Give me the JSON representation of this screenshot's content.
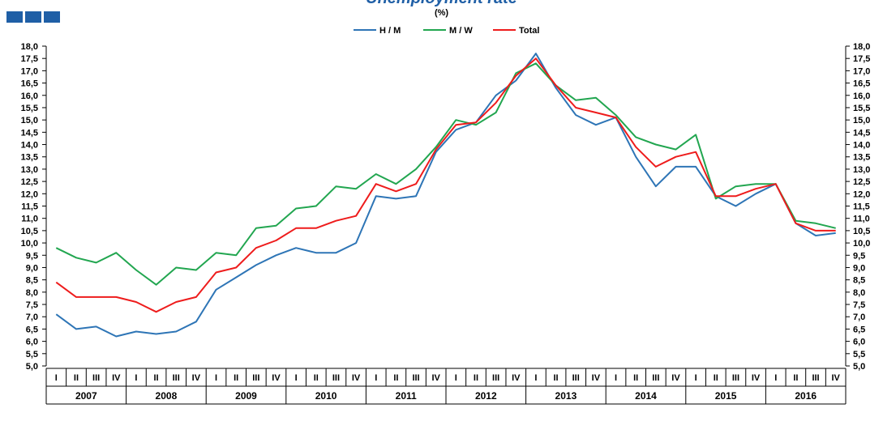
{
  "title": "Unemployment rate",
  "chart_data": {
    "type": "line",
    "unit_label": "(%)",
    "title": "Unemployment rate",
    "y_range": [
      5.0,
      18.0
    ],
    "y_step": 0.5,
    "y_tick_labels": [
      "5,0",
      "5,5",
      "6,0",
      "6,5",
      "7,0",
      "7,5",
      "8,0",
      "8,5",
      "9,0",
      "9,5",
      "10,0",
      "10,5",
      "11,0",
      "11,5",
      "12,0",
      "12,5",
      "13,0",
      "13,5",
      "14,0",
      "14,5",
      "15,0",
      "15,5",
      "16,0",
      "16,5",
      "17,0",
      "17,5",
      "18,0"
    ],
    "quarters": [
      "I",
      "II",
      "III",
      "IV"
    ],
    "years": [
      "2007",
      "2008",
      "2009",
      "2010",
      "2011",
      "2012",
      "2013",
      "2014",
      "2015",
      "2016"
    ],
    "legend_position": "top-center",
    "grid": false,
    "series": [
      {
        "name": "H / M",
        "color": "#2e75b6",
        "values": [
          7.1,
          6.5,
          6.6,
          6.2,
          6.4,
          6.3,
          6.4,
          6.8,
          8.1,
          8.6,
          9.1,
          9.5,
          9.8,
          9.6,
          9.6,
          10.0,
          11.9,
          11.8,
          11.9,
          13.7,
          14.6,
          14.9,
          16.0,
          16.6,
          17.7,
          16.3,
          15.2,
          14.8,
          15.1,
          13.5,
          12.3,
          13.1,
          13.1,
          11.9,
          11.5,
          12.0,
          12.4,
          10.8,
          10.3,
          10.4
        ]
      },
      {
        "name": "M / W",
        "color": "#22a650",
        "values": [
          9.8,
          9.4,
          9.2,
          9.6,
          8.9,
          8.3,
          9.0,
          8.9,
          9.6,
          9.5,
          10.6,
          10.7,
          11.4,
          11.5,
          12.3,
          12.2,
          12.8,
          12.4,
          13.0,
          13.9,
          15.0,
          14.8,
          15.3,
          16.9,
          17.3,
          16.4,
          15.8,
          15.9,
          15.2,
          14.3,
          14.0,
          13.8,
          14.4,
          11.8,
          12.3,
          12.4,
          12.4,
          10.9,
          10.8,
          10.6
        ]
      },
      {
        "name": "Total",
        "color": "#ee1c1c",
        "values": [
          8.4,
          7.8,
          7.8,
          7.8,
          7.6,
          7.2,
          7.6,
          7.8,
          8.8,
          9.0,
          9.8,
          10.1,
          10.6,
          10.6,
          10.9,
          11.1,
          12.4,
          12.1,
          12.4,
          13.8,
          14.8,
          14.9,
          15.7,
          16.8,
          17.5,
          16.4,
          15.5,
          15.3,
          15.1,
          13.9,
          13.1,
          13.5,
          13.7,
          11.9,
          11.9,
          12.2,
          12.4,
          10.8,
          10.5,
          10.5
        ]
      }
    ]
  }
}
